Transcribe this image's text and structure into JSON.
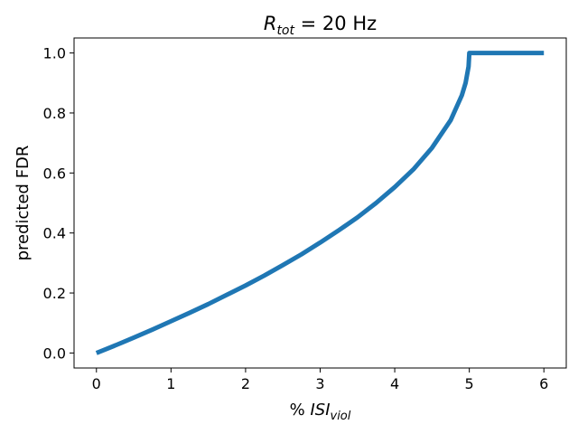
{
  "chart_data": {
    "type": "line",
    "title": {
      "var": "R",
      "sub": "tot",
      "rest": " = 20 Hz"
    },
    "xlabel": {
      "prefix": "% ",
      "var": "ISI",
      "sub": "viol"
    },
    "ylabel": "predicted FDR",
    "xlim": [
      -0.3,
      6.3
    ],
    "ylim": [
      -0.05,
      1.05
    ],
    "xticks": [
      0,
      1,
      2,
      3,
      4,
      5,
      6
    ],
    "xtick_labels": [
      "0",
      "1",
      "2",
      "3",
      "4",
      "5",
      "6"
    ],
    "yticks": [
      0.0,
      0.2,
      0.4,
      0.6,
      0.8,
      1.0
    ],
    "ytick_labels": [
      "0.0",
      "0.2",
      "0.4",
      "0.6",
      "0.8",
      "1.0"
    ],
    "grid": false,
    "series": [
      {
        "color": "#1f77b4",
        "x": [
          0,
          0.25,
          0.5,
          0.75,
          1.0,
          1.25,
          1.5,
          1.75,
          2.0,
          2.25,
          2.5,
          2.75,
          3.0,
          3.25,
          3.5,
          3.75,
          4.0,
          4.25,
          4.5,
          4.75,
          4.9,
          4.95,
          4.99,
          5.0,
          5.5,
          6.0
        ],
        "y": [
          0.0,
          0.025,
          0.051,
          0.078,
          0.106,
          0.134,
          0.163,
          0.194,
          0.225,
          0.258,
          0.293,
          0.329,
          0.368,
          0.409,
          0.452,
          0.5,
          0.553,
          0.612,
          0.684,
          0.776,
          0.859,
          0.9,
          0.955,
          1.0,
          1.0,
          1.0
        ]
      }
    ]
  }
}
